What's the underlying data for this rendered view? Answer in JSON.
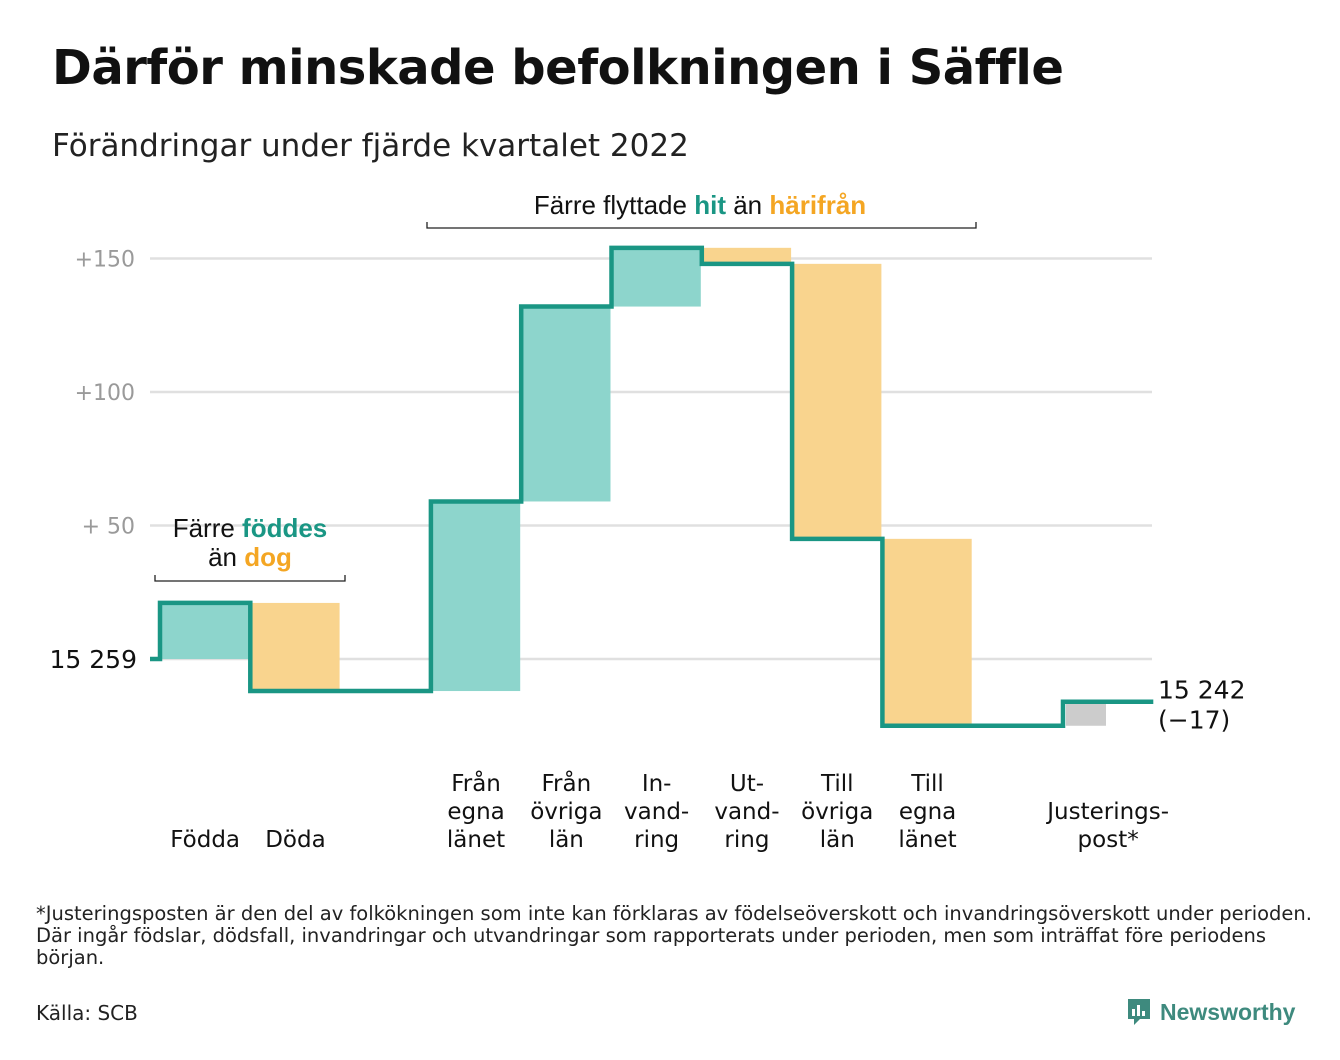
{
  "title": "Därför minskade befolkningen i Säffle",
  "subtitle": "Förändringar under fjärde kvartalet 2022",
  "colors": {
    "inflow": "#8dd5cc",
    "outflow": "#f9d48e",
    "adjustment": "#cccccc",
    "line": "#1a9684",
    "teal_text": "#1a9684",
    "orange_text": "#f4a623",
    "grid": "#e0e0e0",
    "tick_text": "#9a9a9a"
  },
  "chart_data": {
    "type": "waterfall",
    "start": {
      "value": 15259,
      "label": "15 259"
    },
    "end": {
      "value": 15242,
      "label": "15 242",
      "change_label": "(−17)"
    },
    "y_ticks": [
      {
        "value": 150,
        "label": "+150"
      },
      {
        "value": 100,
        "label": "+100"
      },
      {
        "value": 50,
        "label": "+ 50"
      }
    ],
    "ylim": [
      -30,
      160
    ],
    "grid": true,
    "steps": [
      {
        "id": "fodda",
        "lines": [
          "Födda"
        ],
        "change": 21,
        "kind": "inflow"
      },
      {
        "id": "doda",
        "lines": [
          "Döda"
        ],
        "change": -33,
        "kind": "outflow"
      },
      {
        "id": "gap",
        "lines": [],
        "change": 0,
        "kind": "none"
      },
      {
        "id": "fran-egna-lanet",
        "lines": [
          "Från",
          "egna",
          "länet"
        ],
        "change": 71,
        "kind": "inflow"
      },
      {
        "id": "fran-ovriga-lan",
        "lines": [
          "Från",
          "övriga",
          "län"
        ],
        "change": 73,
        "kind": "inflow"
      },
      {
        "id": "invandring",
        "lines": [
          "In-",
          "vand-",
          "ring"
        ],
        "change": 22,
        "kind": "inflow"
      },
      {
        "id": "utvandring",
        "lines": [
          "Ut-",
          "vand-",
          "ring"
        ],
        "change": -6,
        "kind": "outflow"
      },
      {
        "id": "till-ovriga-lan",
        "lines": [
          "Till",
          "övriga",
          "län"
        ],
        "change": -103,
        "kind": "outflow"
      },
      {
        "id": "till-egna-lanet",
        "lines": [
          "Till",
          "egna",
          "länet"
        ],
        "change": -70,
        "kind": "outflow"
      },
      {
        "id": "gap2",
        "lines": [],
        "change": 0,
        "kind": "none"
      },
      {
        "id": "justeringspost",
        "lines": [
          "Justerings-",
          "post*"
        ],
        "change": 9,
        "kind": "adjustment"
      }
    ],
    "annotations": [
      {
        "id": "births",
        "line1": "Färre ",
        "line1_em": "föddes",
        "line2": "än ",
        "line2_em": "dog"
      },
      {
        "id": "moves",
        "text": "Färre flyttade ",
        "em1": "hit",
        "mid": " än ",
        "em2": "härifrån"
      }
    ]
  },
  "footnote": "*Justeringsposten är den del av folkökningen som inte kan förklaras av födelseöverskott och invandringsöverskott under perioden. Där ingår födslar, dödsfall, invandringar och utvandringar som rapporterats under perioden, men som inträffat före periodens början.",
  "source": "Källa: SCB",
  "brand": {
    "name": "Newsworthy",
    "icon": "newsworthy-logo-icon"
  }
}
